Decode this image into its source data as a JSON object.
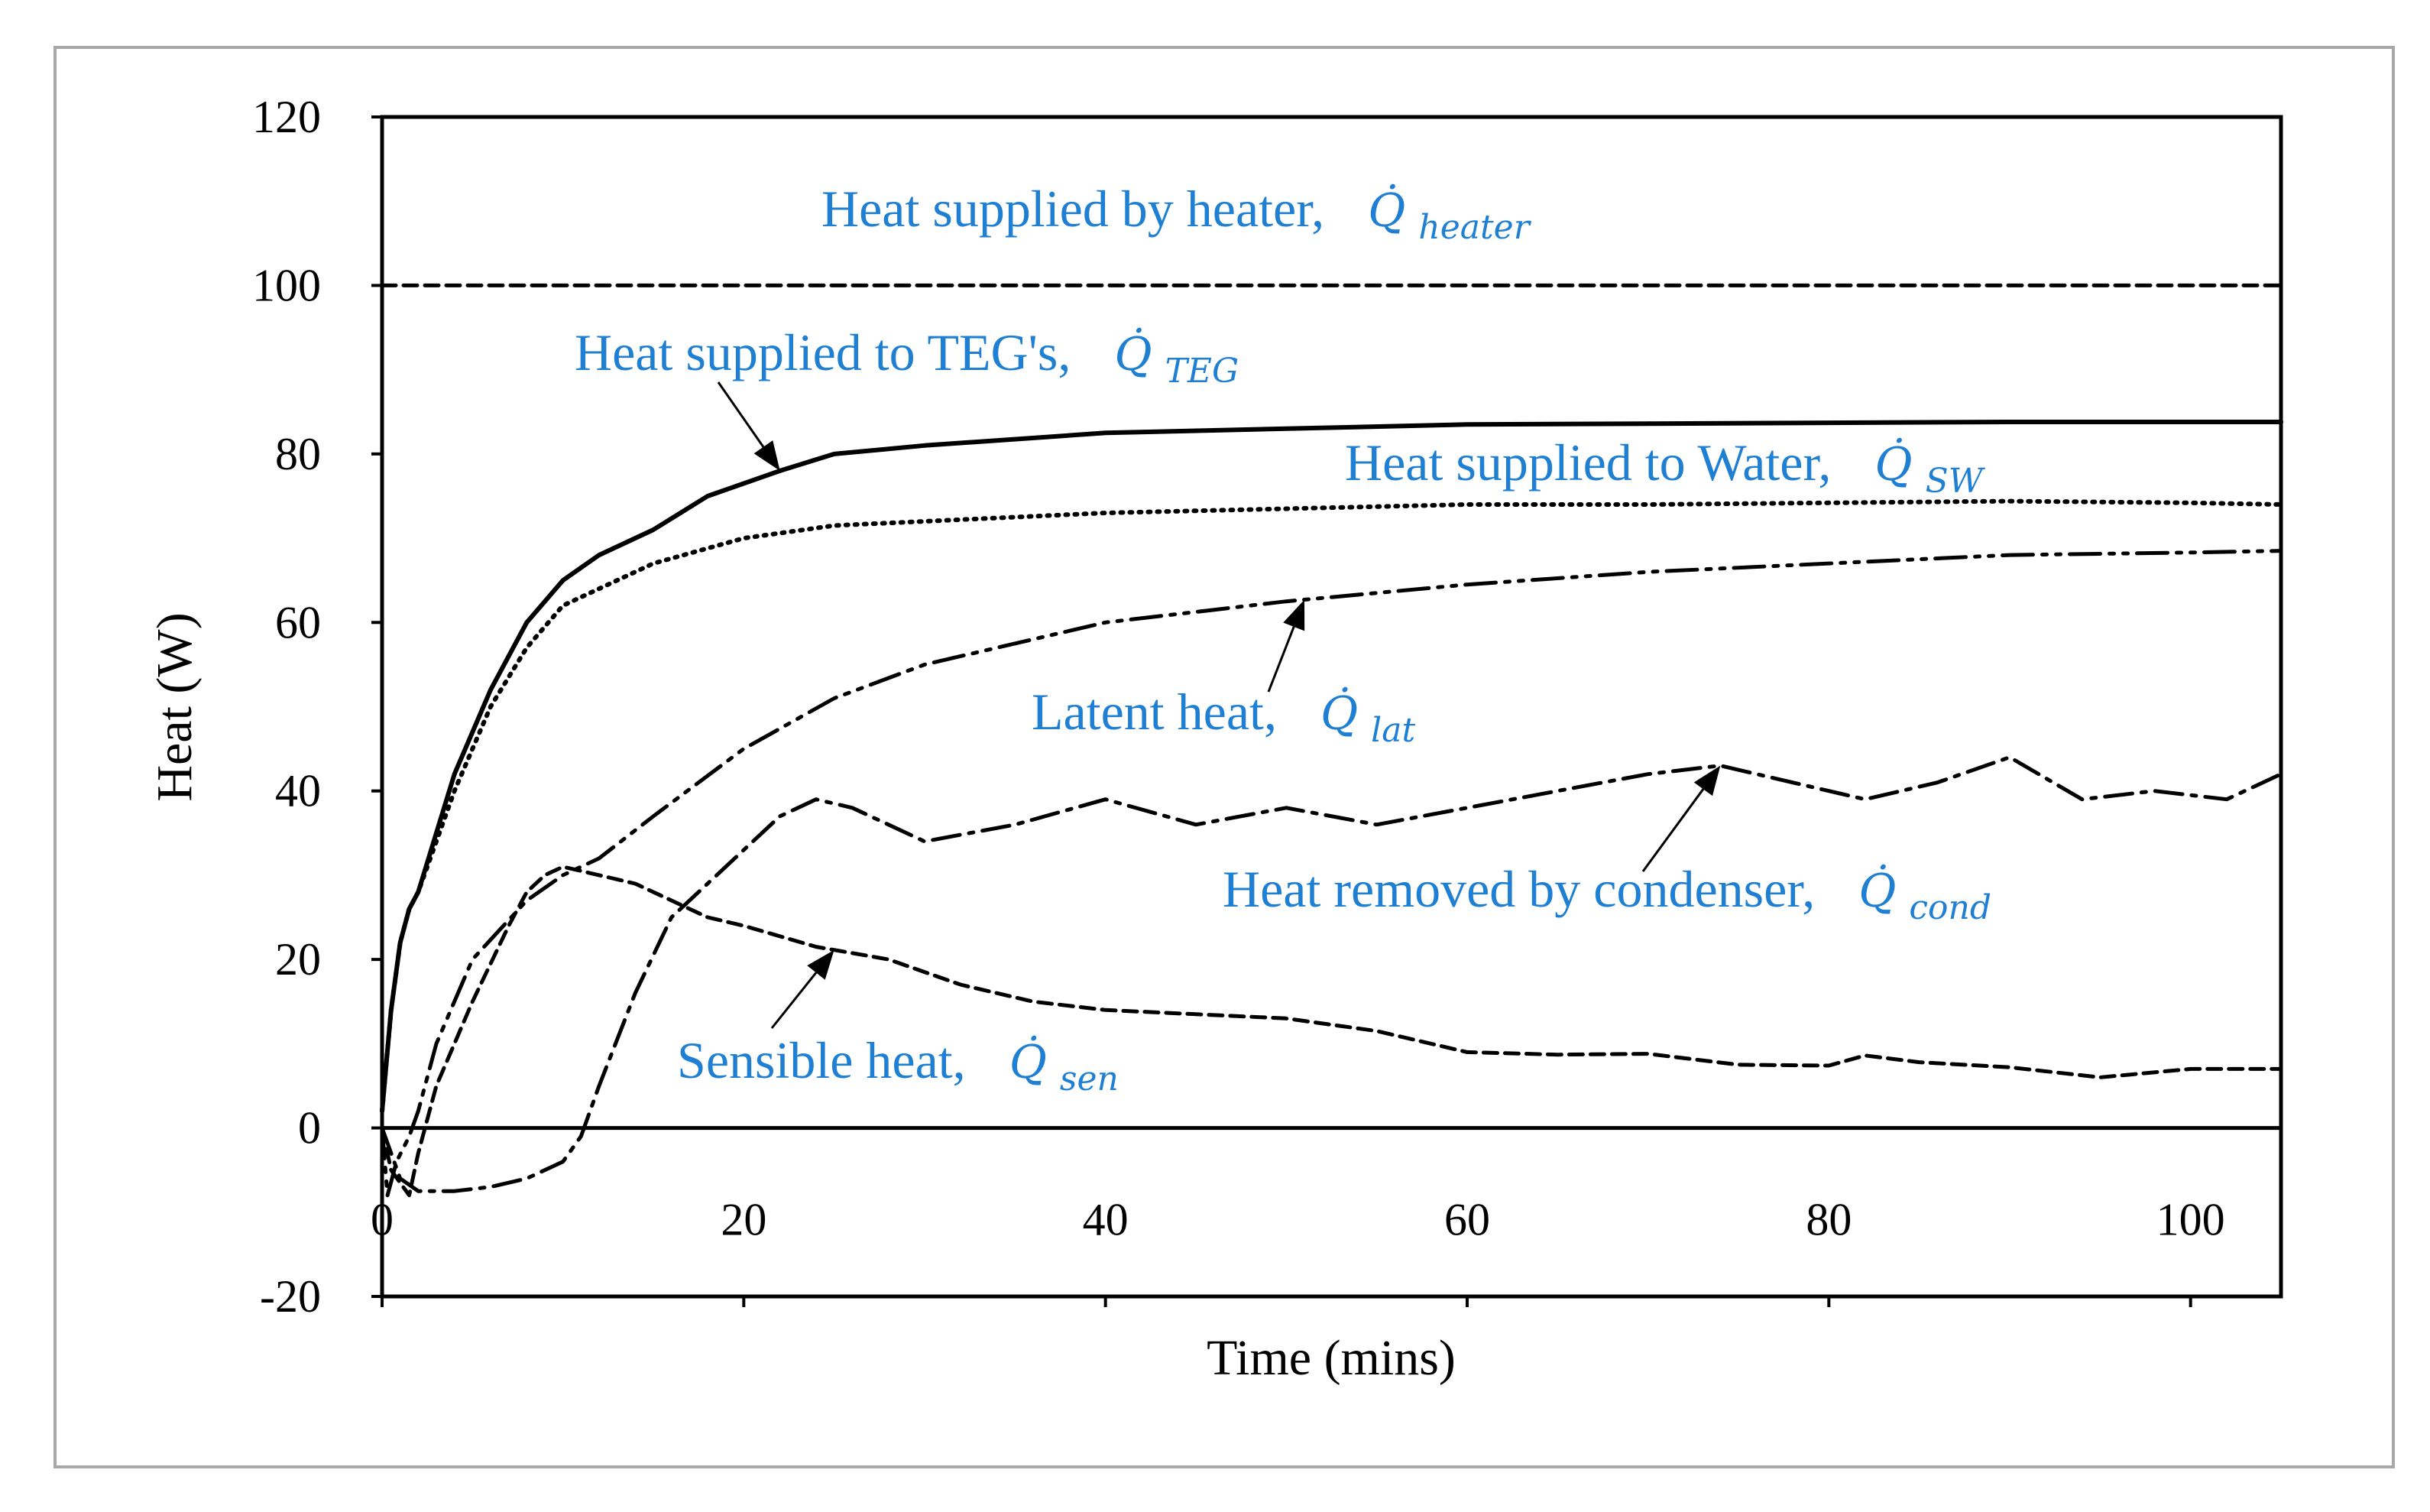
{
  "chart_data": {
    "type": "line",
    "title": "",
    "xlabel": "Time (mins)",
    "ylabel": "Heat (W)",
    "xlim": [
      0,
      105
    ],
    "ylim": [
      -20,
      120
    ],
    "xticks": [
      0,
      20,
      40,
      60,
      80,
      100
    ],
    "yticks": [
      -20,
      0,
      20,
      40,
      60,
      80,
      100,
      120
    ],
    "xtick_labels": [
      "0",
      "20",
      "40",
      "60",
      "80",
      "100"
    ],
    "ytick_labels": [
      "-20",
      "0",
      "20",
      "40",
      "60",
      "80",
      "100",
      "120"
    ],
    "grid": false,
    "annotation_color": "#1f7fd2",
    "series": [
      {
        "name": "Heat supplied by heater",
        "style": "dashed",
        "x": [
          0,
          105
        ],
        "y": [
          100,
          100
        ]
      },
      {
        "name": "Heat supplied to TEG's",
        "style": "solid",
        "x": [
          0,
          0.5,
          1,
          1.5,
          2,
          3,
          4,
          6,
          8,
          10,
          12,
          15,
          18,
          22,
          25,
          30,
          40,
          50,
          60,
          70,
          80,
          90,
          100,
          105
        ],
        "y": [
          2,
          14,
          22,
          26,
          28,
          35,
          42,
          52,
          60,
          65,
          68,
          71,
          75,
          78,
          80,
          81,
          82.5,
          83,
          83.5,
          83.6,
          83.7,
          83.8,
          83.8,
          83.8
        ]
      },
      {
        "name": "Heat supplied to Water",
        "style": "dotted",
        "x": [
          0,
          0.5,
          1,
          1.5,
          2,
          3,
          4,
          6,
          8,
          10,
          12,
          15,
          20,
          25,
          30,
          40,
          50,
          60,
          70,
          80,
          90,
          100,
          105
        ],
        "y": [
          2,
          14,
          22,
          26,
          28,
          34,
          40,
          50,
          57,
          62,
          64,
          67,
          70,
          71.5,
          72,
          73,
          73.5,
          74,
          74,
          74.2,
          74.4,
          74.2,
          74
        ]
      },
      {
        "name": "Latent heat",
        "style": "dashdotdot",
        "x": [
          0,
          0.3,
          0.8,
          1.5,
          2,
          3,
          5,
          8,
          10,
          12,
          15,
          20,
          25,
          30,
          40,
          50,
          60,
          70,
          80,
          90,
          100,
          105
        ],
        "y": [
          0,
          -8,
          -4,
          -1,
          2,
          10,
          20,
          27,
          30,
          32,
          37,
          45,
          51,
          55,
          60,
          62.5,
          64.5,
          66,
          67,
          68,
          68.3,
          68.5
        ]
      },
      {
        "name": "Heat removed by condenser",
        "style": "dashdot",
        "x": [
          0,
          1,
          2,
          4,
          6,
          8,
          10,
          11,
          12,
          14,
          16,
          18,
          20,
          22,
          24,
          26,
          28,
          30,
          35,
          40,
          45,
          50,
          55,
          60,
          65,
          70,
          74,
          78,
          82,
          86,
          90,
          94,
          98,
          102,
          105
        ],
        "y": [
          0,
          -6,
          -7.5,
          -7.5,
          -7,
          -6,
          -4,
          -1,
          5,
          16,
          25,
          29,
          33,
          37,
          39,
          38,
          36,
          34,
          36,
          39,
          36,
          38,
          36,
          38,
          40,
          42,
          43,
          41,
          39,
          41,
          44,
          39,
          40,
          39,
          42
        ]
      },
      {
        "name": "Sensible heat",
        "style": "dashed",
        "x": [
          0,
          0.5,
          1.5,
          2,
          3,
          5,
          7,
          8,
          9,
          10,
          12,
          14,
          16,
          18,
          20,
          24,
          28,
          32,
          36,
          40,
          45,
          50,
          55,
          60,
          65,
          70,
          75,
          80,
          82,
          85,
          90,
          95,
          100,
          105
        ],
        "y": [
          0,
          -5,
          -8,
          -3,
          5,
          15,
          24,
          28,
          30,
          31,
          30,
          29,
          27,
          25,
          24,
          21.5,
          20,
          17,
          15,
          14,
          13.5,
          13,
          11.5,
          9,
          8.7,
          8.8,
          7.5,
          7.4,
          8.6,
          7.8,
          7.2,
          6,
          7,
          7
        ]
      }
    ],
    "annotations": [
      {
        "label": "Heat supplied by heater,",
        "symbol": "Q̇",
        "subscript": "heater",
        "target": "Heat supplied by heater"
      },
      {
        "label": "Heat supplied to TEG's,",
        "symbol": "Q̇",
        "subscript": "TEG",
        "target": "Heat supplied to TEG's"
      },
      {
        "label": "Heat supplied to Water,",
        "symbol": "Q̇",
        "subscript": "SW",
        "target": "Heat supplied to Water"
      },
      {
        "label": "Latent heat,",
        "symbol": "Q̇",
        "subscript": "lat",
        "target": "Latent heat"
      },
      {
        "label": "Heat removed by condenser,",
        "symbol": "Q̇",
        "subscript": "cond",
        "target": "Heat removed by condenser"
      },
      {
        "label": "Sensible heat,",
        "symbol": "Q̇",
        "subscript": "sen",
        "target": "Sensible heat"
      }
    ]
  }
}
